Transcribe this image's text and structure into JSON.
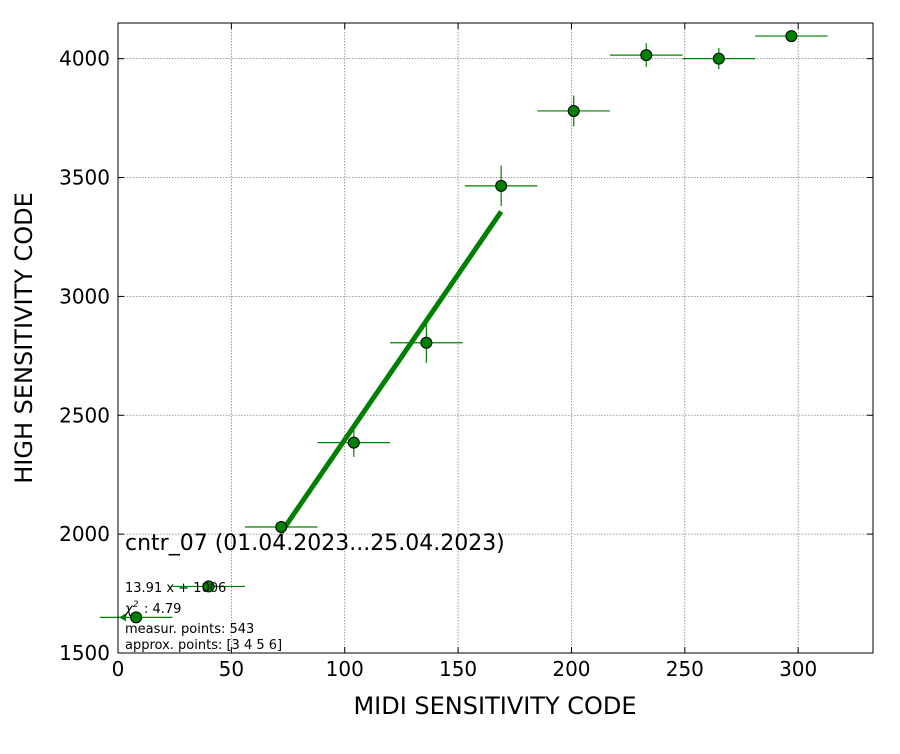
{
  "chart_data": {
    "type": "scatter",
    "title": "",
    "xlabel": "MIDI SENSITIVITY CODE",
    "ylabel": "HIGH SENSITIVITY CODE",
    "xlim": [
      0,
      333
    ],
    "ylim": [
      1500,
      4150
    ],
    "xticks": [
      0,
      50,
      100,
      150,
      200,
      250,
      300
    ],
    "yticks": [
      1500,
      2000,
      2500,
      3000,
      3500,
      4000
    ],
    "grid": true,
    "series": [
      {
        "color": "#008000",
        "points": [
          {
            "x": 8,
            "y": 1650,
            "xerr": 16,
            "yerr": 0
          },
          {
            "x": 40,
            "y": 1780,
            "xerr": 16,
            "yerr": 0
          },
          {
            "x": 72,
            "y": 2030,
            "xerr": 16,
            "yerr": 0
          },
          {
            "x": 104,
            "y": 2385,
            "xerr": 16,
            "yerr": 60
          },
          {
            "x": 136,
            "y": 2805,
            "xerr": 16,
            "yerr": 85
          },
          {
            "x": 169,
            "y": 3465,
            "xerr": 16,
            "yerr": 85
          },
          {
            "x": 201,
            "y": 3780,
            "xerr": 16,
            "yerr": 65
          },
          {
            "x": 233,
            "y": 4015,
            "xerr": 16,
            "yerr": 50
          },
          {
            "x": 265,
            "y": 4000,
            "xerr": 16,
            "yerr": 45
          },
          {
            "x": 297,
            "y": 4095,
            "xerr": 16,
            "yerr": 0
          }
        ]
      }
    ],
    "fit_line": {
      "slope": 13.91,
      "intercept": 1006,
      "x_start": 72,
      "x_end": 169,
      "color": "#008000"
    },
    "annotation": {
      "label": "cntr_07 (01.04.2023...25.04.2023)",
      "fit_text": "13.91 x + 1006",
      "chi_text": ": 4.79",
      "measured_text": "measur. points: 543",
      "approx_text": "approx. points: [3 4 5 6]"
    }
  }
}
